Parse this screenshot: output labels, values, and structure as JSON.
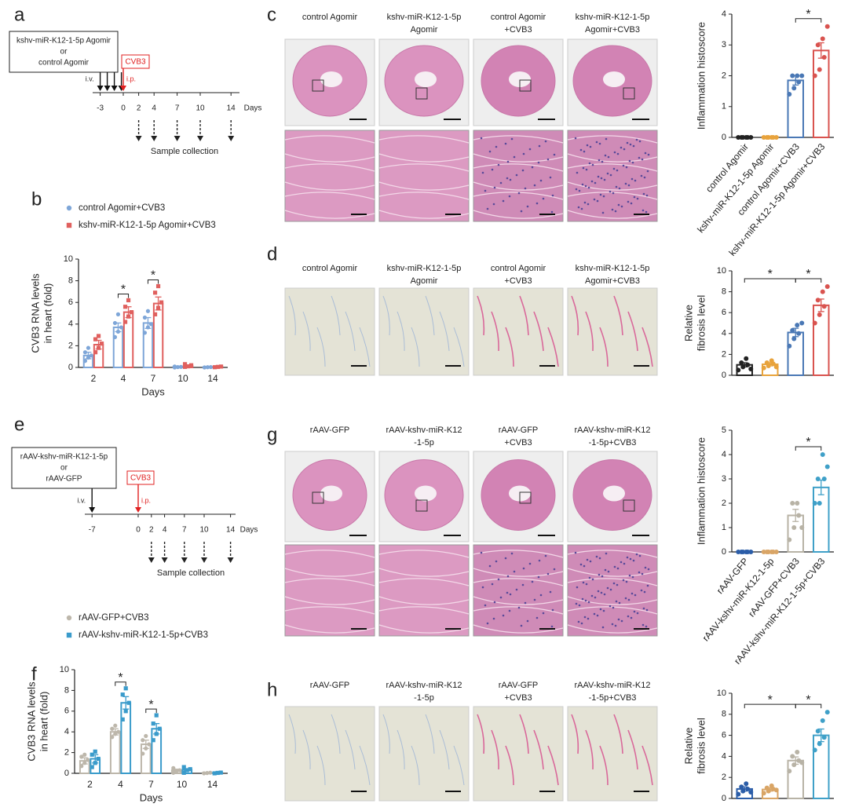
{
  "chart_data": [
    {
      "type": "timecourse",
      "panel": "b",
      "categories": [
        "2",
        "4",
        "7",
        "10",
        "14"
      ],
      "ylim": [
        0,
        10
      ],
      "yticks": [
        0,
        2,
        4,
        6,
        8,
        10
      ],
      "ylabel": [
        "CVB3 RNA levels",
        "in heart (fold)"
      ],
      "xlabel": "Days",
      "series": [
        {
          "name": "control Agomir+CVB3",
          "color": "#7ea6d8",
          "marker": "circle",
          "values": [
            1.1,
            3.7,
            4.1,
            0.05,
            0.02
          ],
          "errors": [
            0.3,
            0.4,
            0.5,
            0.02,
            0.01
          ],
          "points": [
            [
              0.6,
              0.9,
              1.1,
              1.4,
              1.8
            ],
            [
              2.8,
              3.3,
              3.7,
              4.1,
              4.9
            ],
            [
              3.2,
              3.7,
              4.0,
              4.6,
              5.2
            ],
            [
              0,
              0.03,
              0.05,
              0.08
            ],
            [
              0,
              0.02,
              0.03
            ]
          ]
        },
        {
          "name": "kshv-miR-K12-1-5p Agomir+CVB3",
          "color": "#e0605e",
          "marker": "square",
          "values": [
            2.1,
            5.1,
            5.9,
            0.15,
            0.05
          ],
          "errors": [
            0.4,
            0.5,
            0.6,
            0.05,
            0.02
          ],
          "points": [
            [
              1.4,
              1.8,
              2.2,
              2.6,
              2.9
            ],
            [
              4.2,
              4.7,
              5.1,
              5.6,
              6.2
            ],
            [
              4.9,
              5.5,
              6.0,
              6.9,
              7.5
            ],
            [
              0.05,
              0.1,
              0.2,
              0.3
            ],
            [
              0.02,
              0.05,
              0.08
            ]
          ]
        }
      ],
      "significance": [
        {
          "label": "*",
          "category": 1
        },
        {
          "label": "*",
          "category": 2
        }
      ]
    },
    {
      "type": "groups",
      "panel": "c",
      "categories": [
        "control Agomir",
        "kshv-miR-K12-1-5p Agomir",
        "control Agomir+CVB3",
        "kshv-miR-K12-1-5p Agomir+CVB3"
      ],
      "colors": [
        "#222222",
        "#e8a33c",
        "#4a78b5",
        "#d9534f"
      ],
      "values": [
        0.02,
        0.02,
        1.85,
        2.82
      ],
      "errors": [
        0,
        0,
        0.15,
        0.25
      ],
      "points": [
        [
          0,
          0,
          0,
          0,
          0,
          0
        ],
        [
          0,
          0,
          0,
          0,
          0,
          0
        ],
        [
          1.4,
          1.6,
          1.8,
          2.0,
          2.0,
          2.0
        ],
        [
          2.0,
          2.2,
          2.6,
          3.0,
          3.2,
          3.6
        ]
      ],
      "ylim": [
        0,
        4
      ],
      "yticks": [
        0,
        1,
        2,
        3,
        4
      ],
      "ylabel": [
        "Inflammation histoscore"
      ],
      "significance": [
        {
          "label": "*",
          "between": [
            2,
            3
          ]
        }
      ]
    },
    {
      "type": "groups",
      "panel": "d",
      "colors": [
        "#222222",
        "#e8a33c",
        "#4a78b5",
        "#d9534f"
      ],
      "values": [
        1.0,
        1.05,
        4.1,
        6.7
      ],
      "errors": [
        0.2,
        0.15,
        0.4,
        0.6
      ],
      "points": [
        [
          0.5,
          0.8,
          1.0,
          1.2,
          1.6,
          0.6
        ],
        [
          0.7,
          0.9,
          1.1,
          1.2,
          1.4,
          0.8
        ],
        [
          2.8,
          3.5,
          4.0,
          4.3,
          4.8,
          5.0
        ],
        [
          5.0,
          5.8,
          6.6,
          7.2,
          8.0,
          8.5
        ]
      ],
      "ylim": [
        0,
        10
      ],
      "yticks": [
        0,
        2,
        4,
        6,
        8,
        10
      ],
      "ylabel": [
        "Relative",
        "fibrosis level"
      ],
      "significance": [
        {
          "label": "*",
          "between": [
            0,
            2
          ]
        },
        {
          "label": "*",
          "between": [
            2,
            3
          ]
        }
      ]
    },
    {
      "type": "timecourse",
      "panel": "f",
      "categories": [
        "2",
        "4",
        "7",
        "10",
        "14"
      ],
      "ylim": [
        0,
        10
      ],
      "yticks": [
        0,
        2,
        4,
        6,
        8,
        10
      ],
      "ylabel": [
        "CVB3 RNA levels",
        "in heart (fold)"
      ],
      "xlabel": "Days",
      "series": [
        {
          "name": "rAAV-GFP+CVB3",
          "color": "#bdb7ab",
          "marker": "circle",
          "values": [
            1.2,
            4.0,
            2.8,
            0.3,
            0.05
          ],
          "errors": [
            0.3,
            0.3,
            0.4,
            0.1,
            0.02
          ],
          "points": [
            [
              0.7,
              1.0,
              1.3,
              1.6,
              1.8
            ],
            [
              3.5,
              3.8,
              4.0,
              4.3,
              4.6
            ],
            [
              1.9,
              2.4,
              2.8,
              3.2,
              3.6
            ],
            [
              0.05,
              0.2,
              0.3,
              0.5
            ],
            [
              0,
              0.03,
              0.06
            ]
          ]
        },
        {
          "name": "rAAV-kshv-miR-K12-1-5p+CVB3",
          "color": "#3a9bcb",
          "marker": "square",
          "values": [
            1.4,
            6.8,
            4.3,
            0.35,
            0.05
          ],
          "errors": [
            0.4,
            0.6,
            0.5,
            0.1,
            0.02
          ],
          "points": [
            [
              0.6,
              1.0,
              1.4,
              1.8,
              2.1
            ],
            [
              5.2,
              6.0,
              6.8,
              7.6,
              8.2
            ],
            [
              3.2,
              3.8,
              4.3,
              4.8,
              5.6
            ],
            [
              0.05,
              0.3,
              0.4,
              0.6
            ],
            [
              0,
              0.04,
              0.07
            ]
          ]
        }
      ],
      "significance": [
        {
          "label": "*",
          "category": 1
        },
        {
          "label": "*",
          "category": 2
        }
      ]
    },
    {
      "type": "groups",
      "panel": "g",
      "categories": [
        "rAAV-GFP",
        "rAAV-kshv-miR-K12-1-5p",
        "rAAV-GFP+CVB3",
        "rAAV-kshv-miR-K12-1-5p+CVB3"
      ],
      "colors": [
        "#2b5da8",
        "#d9a566",
        "#b8b3a6",
        "#3fa0c8"
      ],
      "values": [
        0.02,
        0.02,
        1.5,
        2.65
      ],
      "errors": [
        0,
        0,
        0.25,
        0.3
      ],
      "points": [
        [
          0,
          0,
          0,
          0,
          0,
          0
        ],
        [
          0,
          0,
          0,
          0,
          0,
          0
        ],
        [
          0.5,
          1.0,
          1.5,
          2.0,
          2.0,
          1.0
        ],
        [
          2.0,
          2.0,
          3.0,
          3.0,
          4.0,
          3.5
        ]
      ],
      "ylim": [
        0,
        5
      ],
      "yticks": [
        0,
        1,
        2,
        3,
        4,
        5
      ],
      "ylabel": [
        "Inflammation histoscore"
      ],
      "significance": [
        {
          "label": "*",
          "between": [
            2,
            3
          ]
        }
      ]
    },
    {
      "type": "groups",
      "panel": "h",
      "colors": [
        "#2b5da8",
        "#d9a566",
        "#b8b3a6",
        "#3fa0c8"
      ],
      "values": [
        0.9,
        0.85,
        3.6,
        6.0
      ],
      "errors": [
        0.2,
        0.15,
        0.35,
        0.6
      ],
      "points": [
        [
          0.4,
          0.7,
          0.9,
          1.1,
          1.4,
          0.6
        ],
        [
          0.5,
          0.7,
          0.9,
          1.0,
          1.2,
          0.8
        ],
        [
          2.6,
          3.2,
          3.6,
          4.0,
          4.4,
          3.4
        ],
        [
          4.6,
          5.2,
          5.8,
          6.4,
          7.4,
          8.2
        ]
      ],
      "ylim": [
        0,
        10
      ],
      "yticks": [
        0,
        2,
        4,
        6,
        8,
        10
      ],
      "ylabel": [
        "Relative",
        "fibrosis level"
      ],
      "significance": [
        {
          "label": "*",
          "between": [
            0,
            2
          ]
        },
        {
          "label": "*",
          "between": [
            2,
            3
          ]
        }
      ]
    }
  ],
  "timelines": [
    {
      "panel": "a",
      "box": [
        "kshv-miR-K12-1-5p Agomir",
        "or",
        "control Agomir"
      ],
      "injection": "i.v.",
      "virus": "CVB3",
      "virus_route": "i.p.",
      "ticks": [
        -3,
        0,
        2,
        4,
        7,
        10,
        14
      ],
      "axis_label": "Days",
      "sampling": "Sample collection"
    },
    {
      "panel": "e",
      "box": [
        "rAAV-kshv-miR-K12-1-5p",
        "or",
        "rAAV-GFP"
      ],
      "injection": "i.v.",
      "virus": "CVB3",
      "virus_route": "i.p.",
      "ticks": [
        -7,
        0,
        2,
        4,
        7,
        10,
        14
      ],
      "axis_label": "Days",
      "sampling": "Sample collection"
    }
  ],
  "image_panels": [
    {
      "columns": [
        [
          "control Agomir"
        ],
        [
          "kshv-miR-K12-1-5p",
          "Agomir"
        ],
        [
          "control Agomir",
          "+CVB3"
        ],
        [
          "kshv-miR-K12-1-5p",
          "Agomir+CVB3"
        ]
      ]
    },
    {
      "columns": [
        [
          "control Agomir"
        ],
        [
          "kshv-miR-K12-1-5p",
          "Agomir"
        ],
        [
          "control Agomir",
          "+CVB3"
        ],
        [
          "kshv-miR-K12-1-5p",
          "Agomir+CVB3"
        ]
      ]
    },
    {
      "columns": [
        [
          "rAAV-GFP"
        ],
        [
          "rAAV-kshv-miR-K12",
          "-1-5p"
        ],
        [
          "rAAV-GFP",
          "+CVB3"
        ],
        [
          "rAAV-kshv-miR-K12",
          "-1-5p+CVB3"
        ]
      ]
    },
    {
      "columns": [
        [
          "rAAV-GFP"
        ],
        [
          "rAAV-kshv-miR-K12",
          "-1-5p"
        ],
        [
          "rAAV-GFP",
          "+CVB3"
        ],
        [
          "rAAV-kshv-miR-K12",
          "-1-5p+CVB3"
        ]
      ]
    }
  ]
}
